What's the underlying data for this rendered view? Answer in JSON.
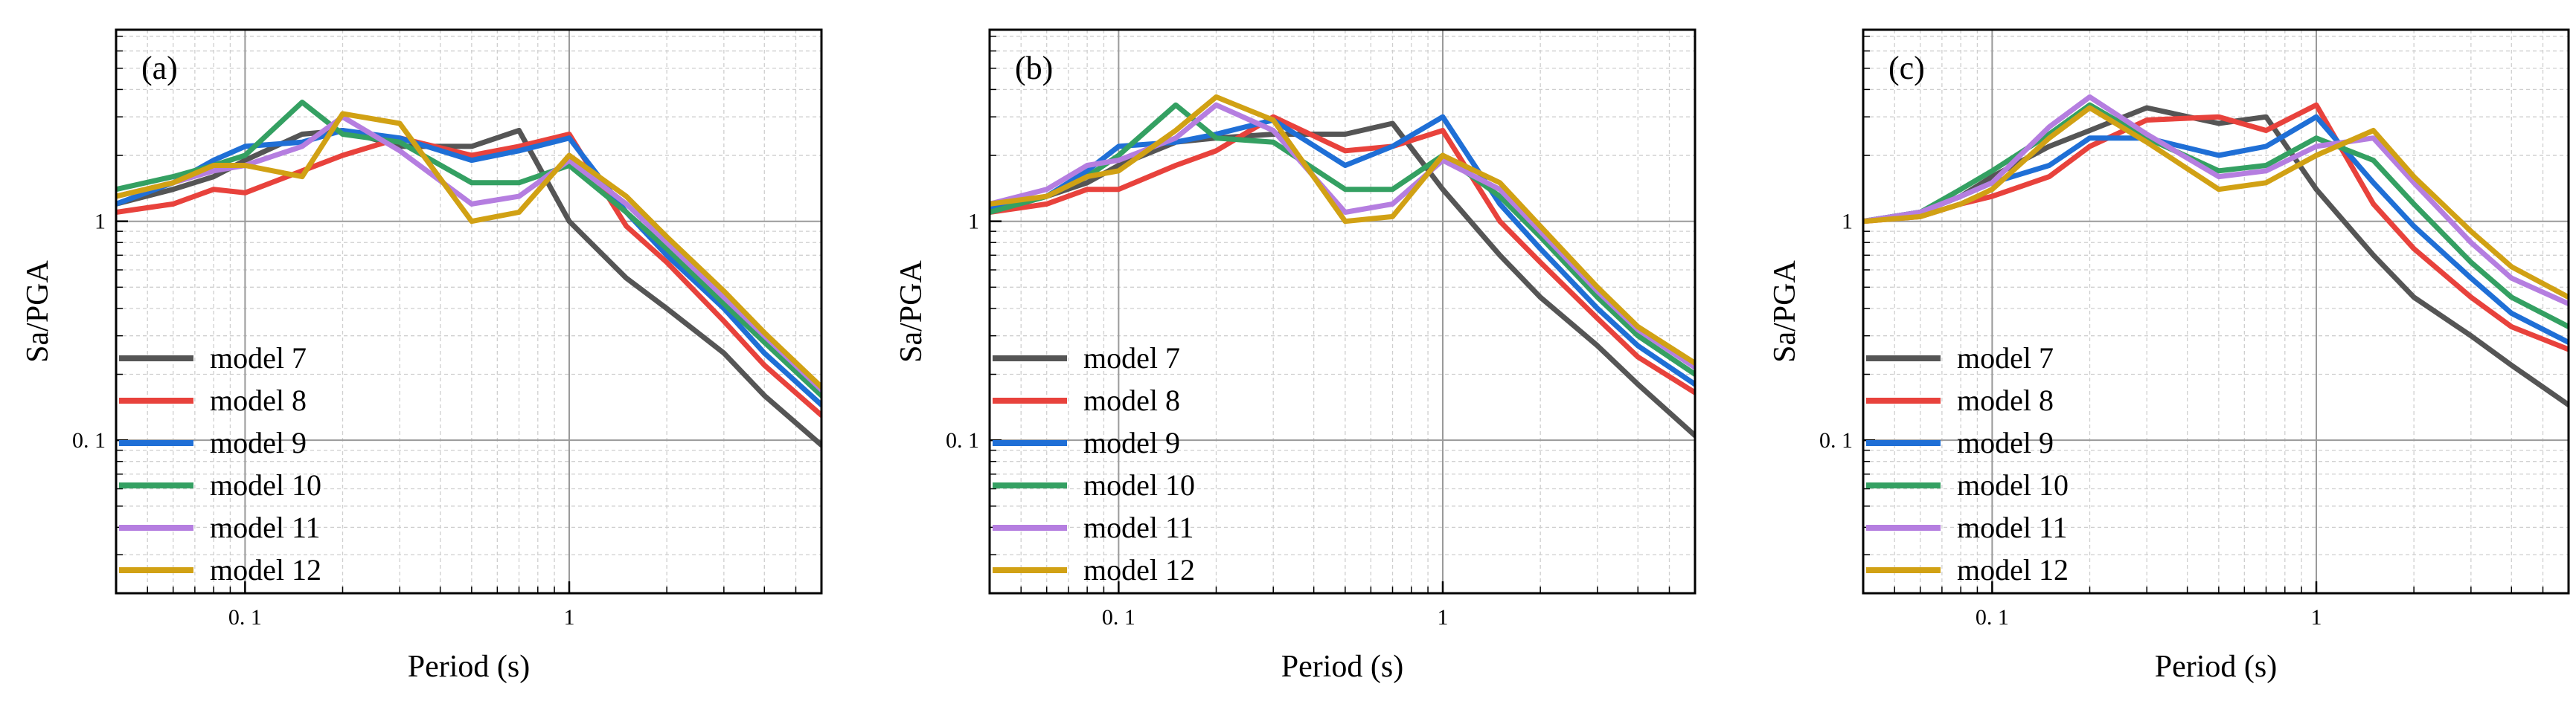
{
  "figure": {
    "xlabel": "Period (s)",
    "ylabel": "Sa/PGA"
  },
  "legend_entries": [
    {
      "name": "model 7",
      "color": "#555555"
    },
    {
      "name": "model 8",
      "color": "#e8423c"
    },
    {
      "name": "model 9",
      "color": "#1f6fd6"
    },
    {
      "name": "model 10",
      "color": "#34a062"
    },
    {
      "name": "model 11",
      "color": "#b57ee0"
    },
    {
      "name": "model 12",
      "color": "#d1a114"
    }
  ],
  "chart_data": [
    {
      "type": "line",
      "panel": "(a)",
      "xscale": "log",
      "yscale": "log",
      "xlim": [
        0.04,
        6
      ],
      "ylim": [
        0.02,
        7.5
      ],
      "xticks": [
        {
          "value": 0.1,
          "label": "0. 1"
        },
        {
          "value": 1,
          "label": "1"
        }
      ],
      "yticks": [
        {
          "value": 0.1,
          "label": "0. 1"
        },
        {
          "value": 1,
          "label": "1"
        }
      ],
      "xlabel": "Period (s)",
      "ylabel": "Sa/PGA",
      "legend": "lower-left",
      "grid": true,
      "x": [
        0.04,
        0.06,
        0.08,
        0.1,
        0.15,
        0.2,
        0.3,
        0.5,
        0.7,
        1.0,
        1.5,
        2.0,
        3.0,
        4.0,
        6.0
      ],
      "series": [
        {
          "name": "model 7",
          "values": [
            1.2,
            1.4,
            1.6,
            1.9,
            2.5,
            2.6,
            2.2,
            2.2,
            2.6,
            1.0,
            0.55,
            0.4,
            0.25,
            0.16,
            0.095
          ]
        },
        {
          "name": "model 8",
          "values": [
            1.1,
            1.2,
            1.4,
            1.35,
            1.7,
            2.0,
            2.4,
            2.0,
            2.2,
            2.5,
            0.95,
            0.65,
            0.35,
            0.22,
            0.13
          ]
        },
        {
          "name": "model 9",
          "values": [
            1.2,
            1.5,
            1.9,
            2.2,
            2.3,
            2.6,
            2.4,
            1.9,
            2.1,
            2.4,
            1.1,
            0.7,
            0.4,
            0.25,
            0.145
          ]
        },
        {
          "name": "model 10",
          "values": [
            1.4,
            1.6,
            1.8,
            2.0,
            3.5,
            2.5,
            2.3,
            1.5,
            1.5,
            1.8,
            1.1,
            0.75,
            0.42,
            0.28,
            0.16
          ]
        },
        {
          "name": "model 11",
          "values": [
            1.3,
            1.5,
            1.7,
            1.8,
            2.2,
            3.0,
            2.1,
            1.2,
            1.3,
            1.9,
            1.2,
            0.8,
            0.45,
            0.3,
            0.17
          ]
        },
        {
          "name": "model 12",
          "values": [
            1.3,
            1.5,
            1.8,
            1.8,
            1.6,
            3.1,
            2.8,
            1.0,
            1.1,
            2.0,
            1.3,
            0.85,
            0.48,
            0.31,
            0.175
          ]
        }
      ]
    },
    {
      "type": "line",
      "panel": "(b)",
      "xscale": "log",
      "yscale": "log",
      "xlim": [
        0.04,
        6
      ],
      "ylim": [
        0.02,
        7.5
      ],
      "xticks": [
        {
          "value": 0.1,
          "label": "0. 1"
        },
        {
          "value": 1,
          "label": "1"
        }
      ],
      "yticks": [
        {
          "value": 0.1,
          "label": "0. 1"
        },
        {
          "value": 1,
          "label": "1"
        }
      ],
      "xlabel": "Period (s)",
      "ylabel": "Sa/PGA",
      "legend": "lower-left",
      "grid": true,
      "x": [
        0.04,
        0.06,
        0.08,
        0.1,
        0.15,
        0.2,
        0.3,
        0.5,
        0.7,
        1.0,
        1.5,
        2.0,
        3.0,
        4.0,
        6.0
      ],
      "series": [
        {
          "name": "model 7",
          "values": [
            1.1,
            1.3,
            1.5,
            1.8,
            2.3,
            2.4,
            2.5,
            2.5,
            2.8,
            1.4,
            0.7,
            0.45,
            0.27,
            0.18,
            0.105
          ]
        },
        {
          "name": "model 8",
          "values": [
            1.1,
            1.2,
            1.4,
            1.4,
            1.8,
            2.1,
            3.0,
            2.1,
            2.2,
            2.6,
            1.0,
            0.65,
            0.36,
            0.24,
            0.165
          ]
        },
        {
          "name": "model 9",
          "values": [
            1.15,
            1.3,
            1.7,
            2.2,
            2.3,
            2.5,
            2.9,
            1.8,
            2.2,
            3.0,
            1.2,
            0.75,
            0.4,
            0.27,
            0.18
          ]
        },
        {
          "name": "model 10",
          "values": [
            1.1,
            1.3,
            1.6,
            2.0,
            3.4,
            2.4,
            2.3,
            1.4,
            1.4,
            2.0,
            1.3,
            0.85,
            0.45,
            0.3,
            0.2
          ]
        },
        {
          "name": "model 11",
          "values": [
            1.2,
            1.4,
            1.8,
            1.9,
            2.4,
            3.4,
            2.6,
            1.1,
            1.2,
            1.9,
            1.4,
            0.9,
            0.48,
            0.32,
            0.215
          ]
        },
        {
          "name": "model 12",
          "values": [
            1.2,
            1.3,
            1.6,
            1.7,
            2.6,
            3.7,
            2.9,
            1.0,
            1.05,
            2.0,
            1.5,
            0.95,
            0.5,
            0.33,
            0.225
          ]
        }
      ]
    },
    {
      "type": "line",
      "panel": "(c)",
      "xscale": "log",
      "yscale": "log",
      "xlim": [
        0.04,
        6
      ],
      "ylim": [
        0.02,
        7.5
      ],
      "xticks": [
        {
          "value": 0.1,
          "label": "0. 1"
        },
        {
          "value": 1,
          "label": "1"
        }
      ],
      "yticks": [
        {
          "value": 0.1,
          "label": "0. 1"
        },
        {
          "value": 1,
          "label": "1"
        }
      ],
      "xlabel": "Period (s)",
      "ylabel": "Sa/PGA",
      "legend": "lower-left",
      "grid": true,
      "x": [
        0.04,
        0.06,
        0.08,
        0.1,
        0.15,
        0.2,
        0.3,
        0.5,
        0.7,
        1.0,
        1.5,
        2.0,
        3.0,
        4.0,
        6.0
      ],
      "series": [
        {
          "name": "model 7",
          "values": [
            1.0,
            1.1,
            1.3,
            1.6,
            2.2,
            2.6,
            3.3,
            2.8,
            3.0,
            1.4,
            0.7,
            0.45,
            0.3,
            0.22,
            0.145
          ]
        },
        {
          "name": "model 8",
          "values": [
            1.0,
            1.05,
            1.2,
            1.3,
            1.6,
            2.2,
            2.9,
            3.0,
            2.6,
            3.4,
            1.2,
            0.75,
            0.45,
            0.33,
            0.26
          ]
        },
        {
          "name": "model 9",
          "values": [
            1.0,
            1.1,
            1.3,
            1.5,
            1.8,
            2.4,
            2.4,
            2.0,
            2.2,
            3.0,
            1.5,
            0.95,
            0.55,
            0.38,
            0.28
          ]
        },
        {
          "name": "model 10",
          "values": [
            1.0,
            1.1,
            1.4,
            1.7,
            2.5,
            3.4,
            2.4,
            1.7,
            1.8,
            2.4,
            1.9,
            1.2,
            0.65,
            0.45,
            0.33
          ]
        },
        {
          "name": "model 11",
          "values": [
            1.0,
            1.1,
            1.3,
            1.5,
            2.7,
            3.7,
            2.5,
            1.6,
            1.7,
            2.2,
            2.4,
            1.5,
            0.8,
            0.55,
            0.42
          ]
        },
        {
          "name": "model 12",
          "values": [
            1.0,
            1.05,
            1.2,
            1.4,
            2.4,
            3.3,
            2.3,
            1.4,
            1.5,
            2.0,
            2.6,
            1.6,
            0.9,
            0.62,
            0.45
          ]
        }
      ]
    }
  ]
}
